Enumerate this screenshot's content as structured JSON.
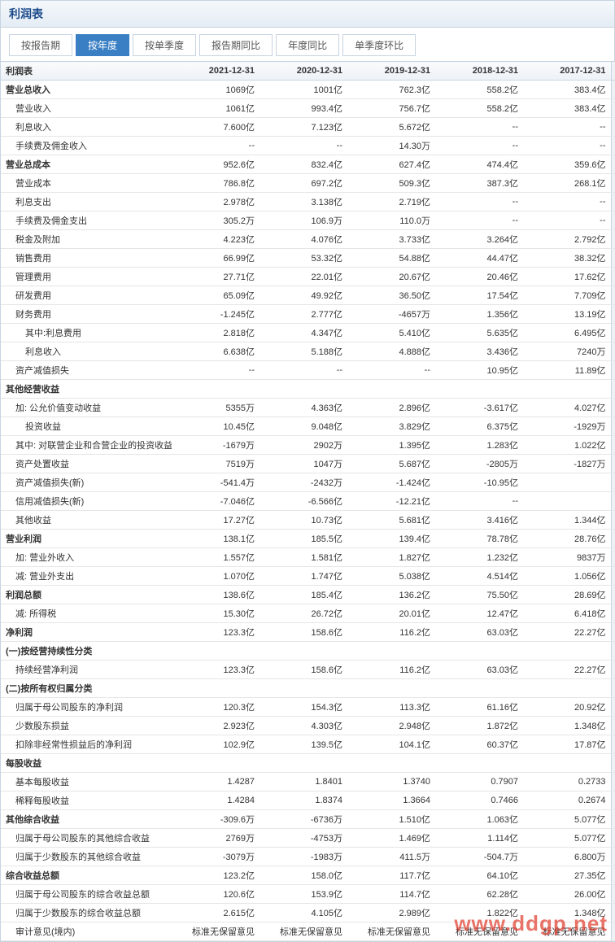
{
  "panel": {
    "title": "利润表"
  },
  "tabs": [
    {
      "label": "按报告期",
      "active": false
    },
    {
      "label": "按年度",
      "active": true
    },
    {
      "label": "按单季度",
      "active": false
    },
    {
      "label": "报告期同比",
      "active": false
    },
    {
      "label": "年度同比",
      "active": false
    },
    {
      "label": "单季度环比",
      "active": false
    }
  ],
  "table": {
    "header": [
      "利润表",
      "2021-12-31",
      "2020-12-31",
      "2019-12-31",
      "2018-12-31",
      "2017-12-31"
    ],
    "rows": [
      {
        "bold": true,
        "indent": 0,
        "cells": [
          "营业总收入",
          "1069亿",
          "1001亿",
          "762.3亿",
          "558.2亿",
          "383.4亿"
        ]
      },
      {
        "bold": false,
        "indent": 1,
        "cells": [
          "营业收入",
          "1061亿",
          "993.4亿",
          "756.7亿",
          "558.2亿",
          "383.4亿"
        ]
      },
      {
        "bold": false,
        "indent": 1,
        "cells": [
          "利息收入",
          "7.600亿",
          "7.123亿",
          "5.672亿",
          "--",
          "--"
        ]
      },
      {
        "bold": false,
        "indent": 1,
        "cells": [
          "手续费及佣金收入",
          "--",
          "--",
          "14.30万",
          "--",
          "--"
        ]
      },
      {
        "bold": true,
        "indent": 0,
        "cells": [
          "营业总成本",
          "952.6亿",
          "832.4亿",
          "627.4亿",
          "474.4亿",
          "359.6亿"
        ]
      },
      {
        "bold": false,
        "indent": 1,
        "cells": [
          "营业成本",
          "786.8亿",
          "697.2亿",
          "509.3亿",
          "387.3亿",
          "268.1亿"
        ]
      },
      {
        "bold": false,
        "indent": 1,
        "cells": [
          "利息支出",
          "2.978亿",
          "3.138亿",
          "2.719亿",
          "--",
          "--"
        ]
      },
      {
        "bold": false,
        "indent": 1,
        "cells": [
          "手续费及佣金支出",
          "305.2万",
          "106.9万",
          "110.0万",
          "--",
          "--"
        ]
      },
      {
        "bold": false,
        "indent": 1,
        "cells": [
          "税金及附加",
          "4.223亿",
          "4.076亿",
          "3.733亿",
          "3.264亿",
          "2.792亿"
        ]
      },
      {
        "bold": false,
        "indent": 1,
        "cells": [
          "销售费用",
          "66.99亿",
          "53.32亿",
          "54.88亿",
          "44.47亿",
          "38.32亿"
        ]
      },
      {
        "bold": false,
        "indent": 1,
        "cells": [
          "管理费用",
          "27.71亿",
          "22.01亿",
          "20.67亿",
          "20.46亿",
          "17.62亿"
        ]
      },
      {
        "bold": false,
        "indent": 1,
        "cells": [
          "研发费用",
          "65.09亿",
          "49.92亿",
          "36.50亿",
          "17.54亿",
          "7.709亿"
        ]
      },
      {
        "bold": false,
        "indent": 1,
        "cells": [
          "财务费用",
          "-1.245亿",
          "2.777亿",
          "-4657万",
          "1.356亿",
          "13.19亿"
        ]
      },
      {
        "bold": false,
        "indent": 2,
        "cells": [
          "其中:利息费用",
          "2.818亿",
          "4.347亿",
          "5.410亿",
          "5.635亿",
          "6.495亿"
        ]
      },
      {
        "bold": false,
        "indent": 2,
        "cells": [
          "利息收入",
          "6.638亿",
          "5.188亿",
          "4.888亿",
          "3.436亿",
          "7240万"
        ]
      },
      {
        "bold": false,
        "indent": 1,
        "cells": [
          "资产减值损失",
          "--",
          "--",
          "--",
          "10.95亿",
          "11.89亿"
        ]
      },
      {
        "bold": true,
        "indent": 0,
        "cells": [
          "其他经营收益",
          "",
          "",
          "",
          "",
          ""
        ]
      },
      {
        "bold": false,
        "indent": 1,
        "cells": [
          "加: 公允价值变动收益",
          "5355万",
          "4.363亿",
          "2.896亿",
          "-3.617亿",
          "4.027亿"
        ]
      },
      {
        "bold": false,
        "indent": 2,
        "cells": [
          "投资收益",
          "10.45亿",
          "9.048亿",
          "3.829亿",
          "6.375亿",
          "-1929万"
        ]
      },
      {
        "bold": false,
        "indent": 1,
        "cells": [
          "其中: 对联营企业和合营企业的投资收益",
          "-1679万",
          "2902万",
          "1.395亿",
          "1.283亿",
          "1.022亿"
        ]
      },
      {
        "bold": false,
        "indent": 1,
        "cells": [
          "资产处置收益",
          "7519万",
          "1047万",
          "5.687亿",
          "-2805万",
          "-1827万"
        ]
      },
      {
        "bold": false,
        "indent": 1,
        "cells": [
          "资产减值损失(新)",
          "-541.4万",
          "-2432万",
          "-1.424亿",
          "-10.95亿",
          ""
        ]
      },
      {
        "bold": false,
        "indent": 1,
        "cells": [
          "信用减值损失(新)",
          "-7.046亿",
          "-6.566亿",
          "-12.21亿",
          "--",
          ""
        ]
      },
      {
        "bold": false,
        "indent": 1,
        "cells": [
          "其他收益",
          "17.27亿",
          "10.73亿",
          "5.681亿",
          "3.416亿",
          "1.344亿"
        ]
      },
      {
        "bold": true,
        "indent": 0,
        "cells": [
          "营业利润",
          "138.1亿",
          "185.5亿",
          "139.4亿",
          "78.78亿",
          "28.76亿"
        ]
      },
      {
        "bold": false,
        "indent": 1,
        "cells": [
          "加: 营业外收入",
          "1.557亿",
          "1.581亿",
          "1.827亿",
          "1.232亿",
          "9837万"
        ]
      },
      {
        "bold": false,
        "indent": 1,
        "cells": [
          "减: 营业外支出",
          "1.070亿",
          "1.747亿",
          "5.038亿",
          "4.514亿",
          "1.056亿"
        ]
      },
      {
        "bold": true,
        "indent": 0,
        "cells": [
          "利润总额",
          "138.6亿",
          "185.4亿",
          "136.2亿",
          "75.50亿",
          "28.69亿"
        ]
      },
      {
        "bold": false,
        "indent": 1,
        "cells": [
          "减: 所得税",
          "15.30亿",
          "26.72亿",
          "20.01亿",
          "12.47亿",
          "6.418亿"
        ]
      },
      {
        "bold": true,
        "indent": 0,
        "cells": [
          "净利润",
          "123.3亿",
          "158.6亿",
          "116.2亿",
          "63.03亿",
          "22.27亿"
        ]
      },
      {
        "bold": true,
        "indent": 0,
        "cells": [
          "(一)按经营持续性分类",
          "",
          "",
          "",
          "",
          ""
        ]
      },
      {
        "bold": false,
        "indent": 1,
        "cells": [
          "持续经营净利润",
          "123.3亿",
          "158.6亿",
          "116.2亿",
          "63.03亿",
          "22.27亿"
        ]
      },
      {
        "bold": true,
        "indent": 0,
        "cells": [
          "(二)按所有权归属分类",
          "",
          "",
          "",
          "",
          ""
        ]
      },
      {
        "bold": false,
        "indent": 1,
        "cells": [
          "归属于母公司股东的净利润",
          "120.3亿",
          "154.3亿",
          "113.3亿",
          "61.16亿",
          "20.92亿"
        ]
      },
      {
        "bold": false,
        "indent": 1,
        "cells": [
          "少数股东损益",
          "2.923亿",
          "4.303亿",
          "2.948亿",
          "1.872亿",
          "1.348亿"
        ]
      },
      {
        "bold": false,
        "indent": 1,
        "cells": [
          "扣除非经常性损益后的净利润",
          "102.9亿",
          "139.5亿",
          "104.1亿",
          "60.37亿",
          "17.87亿"
        ]
      },
      {
        "bold": true,
        "indent": 0,
        "cells": [
          "每股收益",
          "",
          "",
          "",
          "",
          ""
        ]
      },
      {
        "bold": false,
        "indent": 1,
        "cells": [
          "基本每股收益",
          "1.4287",
          "1.8401",
          "1.3740",
          "0.7907",
          "0.2733"
        ]
      },
      {
        "bold": false,
        "indent": 1,
        "cells": [
          "稀释每股收益",
          "1.4284",
          "1.8374",
          "1.3664",
          "0.7466",
          "0.2674"
        ]
      },
      {
        "bold": true,
        "indent": 0,
        "cells": [
          "其他综合收益",
          "-309.6万",
          "-6736万",
          "1.510亿",
          "1.063亿",
          "5.077亿"
        ]
      },
      {
        "bold": false,
        "indent": 1,
        "cells": [
          "归属于母公司股东的其他综合收益",
          "2769万",
          "-4753万",
          "1.469亿",
          "1.114亿",
          "5.077亿"
        ]
      },
      {
        "bold": false,
        "indent": 1,
        "cells": [
          "归属于少数股东的其他综合收益",
          "-3079万",
          "-1983万",
          "411.5万",
          "-504.7万",
          "6.800万"
        ]
      },
      {
        "bold": true,
        "indent": 0,
        "cells": [
          "综合收益总额",
          "123.2亿",
          "158.0亿",
          "117.7亿",
          "64.10亿",
          "27.35亿"
        ]
      },
      {
        "bold": false,
        "indent": 1,
        "cells": [
          "归属于母公司股东的综合收益总额",
          "120.6亿",
          "153.9亿",
          "114.7亿",
          "62.28亿",
          "26.00亿"
        ]
      },
      {
        "bold": false,
        "indent": 1,
        "cells": [
          "归属于少数股东的综合收益总额",
          "2.615亿",
          "4.105亿",
          "2.989亿",
          "1.822亿",
          "1.348亿"
        ]
      },
      {
        "bold": false,
        "indent": 1,
        "cells": [
          "审计意见(境内)",
          "标准无保留意见",
          "标准无保留意见",
          "标准无保留意见",
          "标准无保留意见",
          "标准无保留意见"
        ]
      }
    ]
  },
  "watermark": "www.ddgp.net"
}
